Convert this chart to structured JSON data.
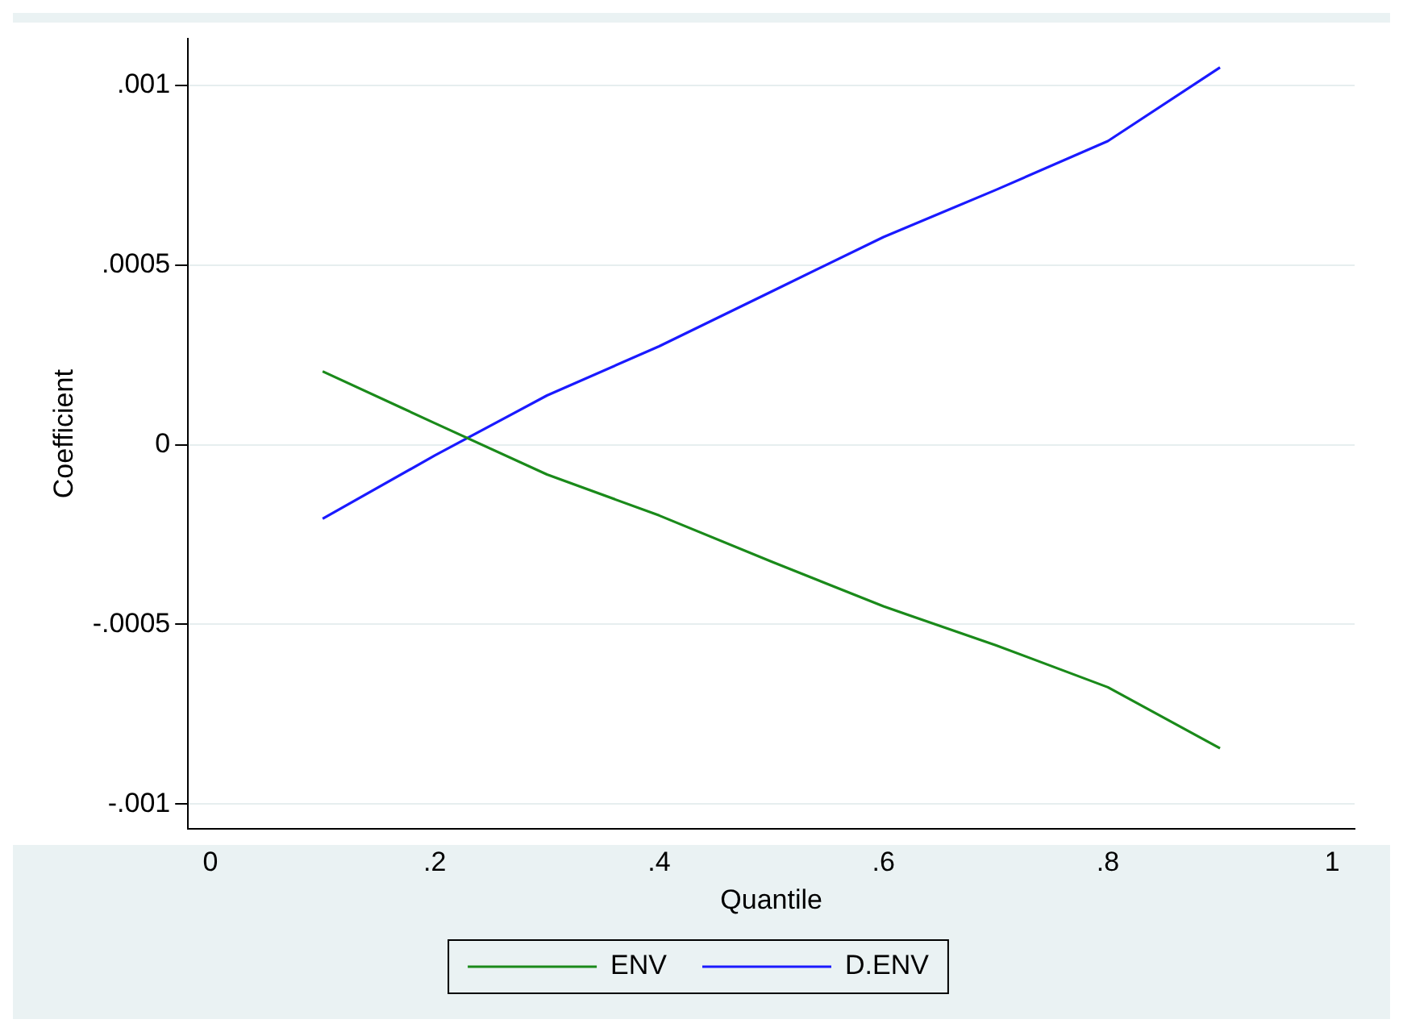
{
  "chart_data": {
    "type": "line",
    "xlabel": "Quantile",
    "ylabel": "Coefficient",
    "x": [
      0.1,
      0.2,
      0.3,
      0.4,
      0.5,
      0.6,
      0.7,
      0.8,
      0.9
    ],
    "series": [
      {
        "name": "ENV",
        "color": "#1a8a1a",
        "values": [
          0.000204,
          6e-05,
          -8.3e-05,
          -0.000197,
          -0.000325,
          -0.00045,
          -0.000558,
          -0.000675,
          -0.000845
        ]
      },
      {
        "name": "D.ENV",
        "color": "#1a1aff",
        "values": [
          -0.000206,
          -3e-05,
          0.000137,
          0.000274,
          0.000426,
          0.000578,
          0.000709,
          0.000845,
          0.00105
        ]
      }
    ],
    "xlim": [
      -0.02,
      1.02
    ],
    "xticks": [
      0,
      {
        "value": 0.2,
        "label": ".2"
      },
      {
        "value": 0.4,
        "label": ".4"
      },
      {
        "value": 0.6,
        "label": ".6"
      },
      {
        "value": 0.8,
        "label": ".8"
      },
      1
    ],
    "ylim": [
      -0.00107,
      0.00113
    ],
    "yticks": [
      {
        "value": -0.001,
        "label": "-.001"
      },
      {
        "value": -0.0005,
        "label": "-.0005"
      },
      0,
      {
        "value": 0.0005,
        "label": ".0005"
      },
      {
        "value": 0.001,
        "label": ".001"
      }
    ],
    "grid": "y",
    "legend": "bottom",
    "marker": "none",
    "line_style": "solid"
  }
}
